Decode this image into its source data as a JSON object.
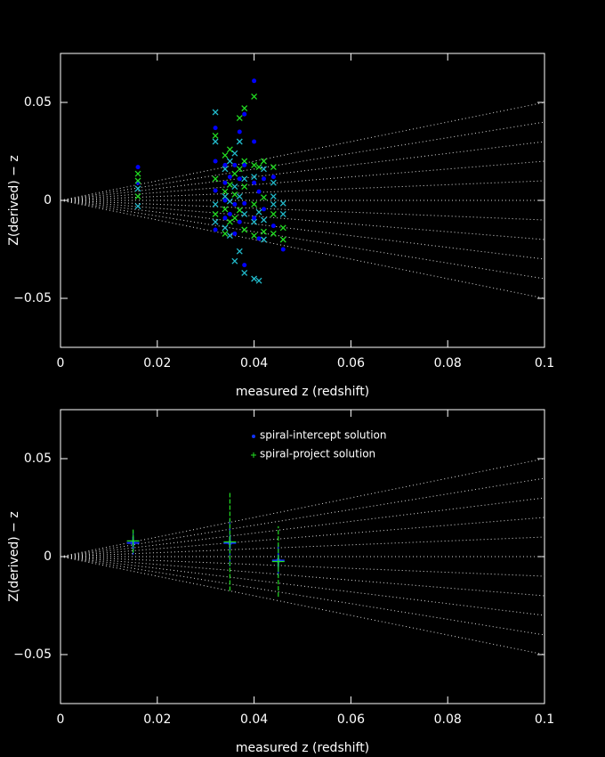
{
  "chart_data": [
    {
      "type": "scatter",
      "x_label": "measured z (redshift)",
      "y_label": "Z(derived) − z",
      "xlim": [
        0,
        0.1
      ],
      "ylim": [
        -0.075,
        0.075
      ],
      "xticks": [
        0,
        0.02,
        0.04,
        0.06,
        0.08,
        0.1
      ],
      "yticks": [
        {
          "value": -0.05,
          "label": "−0.05"
        },
        0,
        0.05
      ],
      "reference_lines": {
        "x": [
          0,
          0.1
        ],
        "values": [
          [
            0,
            0.05
          ],
          [
            0,
            0.04
          ],
          [
            0,
            0.03
          ],
          [
            0,
            0.02
          ],
          [
            0,
            0.01
          ],
          [
            0,
            0
          ],
          [
            0,
            -0.01
          ],
          [
            0,
            -0.02
          ],
          [
            0,
            -0.03
          ],
          [
            0,
            -0.04
          ],
          [
            0,
            -0.05
          ]
        ]
      },
      "series": [
        {
          "color": "#0000ff",
          "marker": "dot",
          "x": [
            0.016,
            0.016,
            0.032,
            0.032,
            0.032,
            0.032,
            0.034,
            0.034,
            0.034,
            0.034,
            0.035,
            0.035,
            0.036,
            0.036,
            0.036,
            0.037,
            0.037,
            0.037,
            0.038,
            0.038,
            0.038,
            0.038,
            0.04,
            0.04,
            0.04,
            0.04,
            0.041,
            0.041,
            0.042,
            0.042,
            0.044,
            0.044,
            0.046
          ],
          "values": [
            0.017,
            0.009,
            0.037,
            0.02,
            0.005,
            -0.015,
            0.018,
            0.009,
            0,
            -0.009,
            0.012,
            -0.007,
            0.018,
            -0.002,
            -0.017,
            0.035,
            0.011,
            -0.011,
            0.044,
            0.018,
            -0.0015,
            -0.033,
            0.061,
            0.03,
            0.009,
            -0.009,
            0.0045,
            -0.0195,
            0.011,
            -0.0045,
            0.012,
            -0.013,
            -0.025
          ]
        },
        {
          "color": "#22dd22",
          "marker": "x",
          "x": [
            0.016,
            0.016,
            0.016,
            0.032,
            0.032,
            0.032,
            0.034,
            0.034,
            0.034,
            0.034,
            0.035,
            0.035,
            0.035,
            0.036,
            0.036,
            0.036,
            0.037,
            0.037,
            0.037,
            0.038,
            0.038,
            0.038,
            0.038,
            0.04,
            0.04,
            0.04,
            0.04,
            0.041,
            0.042,
            0.042,
            0.042,
            0.044,
            0.044,
            0.044,
            0.046,
            0.046
          ],
          "values": [
            0.0136,
            0.01,
            0.002,
            0.033,
            0.011,
            -0.007,
            0.023,
            0.0045,
            -0.0045,
            -0.017,
            0.026,
            0.008,
            -0.011,
            0.0136,
            0.003,
            -0.009,
            0.042,
            0.016,
            -0.005,
            0.047,
            0.02,
            0.007,
            -0.015,
            0.053,
            0.018,
            -0.002,
            -0.018,
            0.017,
            0.02,
            0.0015,
            -0.016,
            0.017,
            -0.007,
            -0.017,
            -0.014,
            -0.02
          ]
        },
        {
          "color": "#22bbcc",
          "marker": "x",
          "x": [
            0.016,
            0.016,
            0.032,
            0.032,
            0.032,
            0.032,
            0.034,
            0.034,
            0.034,
            0.035,
            0.035,
            0.035,
            0.036,
            0.036,
            0.036,
            0.037,
            0.037,
            0.037,
            0.038,
            0.038,
            0.038,
            0.04,
            0.04,
            0.04,
            0.041,
            0.041,
            0.042,
            0.042,
            0.042,
            0.044,
            0.044,
            0.044,
            0.046,
            0.046
          ],
          "values": [
            0.006,
            -0.003,
            0.045,
            0.03,
            -0.002,
            -0.011,
            0.016,
            0.002,
            -0.014,
            0.02,
            -0.0005,
            -0.018,
            0.024,
            -0.031,
            0.007,
            0.03,
            0.002,
            -0.026,
            0.011,
            -0.007,
            -0.037,
            0.012,
            -0.011,
            -0.04,
            -0.041,
            -0.006,
            0.016,
            -0.01,
            -0.02,
            0.009,
            0.002,
            -0.002,
            -0.0015,
            -0.007
          ]
        }
      ]
    },
    {
      "type": "scatter",
      "x_label": "measured z (redshift)",
      "y_label": "Z(derived) − z",
      "xlim": [
        0,
        0.1
      ],
      "ylim": [
        -0.075,
        0.075
      ],
      "xticks": [
        0,
        0.02,
        0.04,
        0.06,
        0.08,
        0.1
      ],
      "yticks": [
        {
          "value": -0.05,
          "label": "−0.05"
        },
        0,
        0.05
      ],
      "legend": "top",
      "reference_lines": {
        "x": [
          0,
          0.1
        ],
        "values": [
          [
            0,
            0.05
          ],
          [
            0,
            0.04
          ],
          [
            0,
            0.03
          ],
          [
            0,
            0.02
          ],
          [
            0,
            0.01
          ],
          [
            0,
            0
          ],
          [
            0,
            -0.01
          ],
          [
            0,
            -0.02
          ],
          [
            0,
            -0.03
          ],
          [
            0,
            -0.04
          ],
          [
            0,
            -0.05
          ]
        ]
      },
      "series": [
        {
          "name": "spiral-intercept solution",
          "color": "#1133ff",
          "marker": "dot",
          "x": [
            0.015,
            0.035,
            0.045
          ],
          "values": [
            0.007,
            0.007,
            -0.002
          ],
          "errors": [
            0.006,
            0.012,
            0.008
          ]
        },
        {
          "name": "spiral-project solution",
          "color": "#22dd22",
          "marker": "plus",
          "x": [
            0.015,
            0.035,
            0.045
          ],
          "values": [
            0.008,
            0.0075,
            -0.0025
          ],
          "errors": [
            0.006,
            0.025,
            0.018
          ]
        }
      ]
    }
  ]
}
